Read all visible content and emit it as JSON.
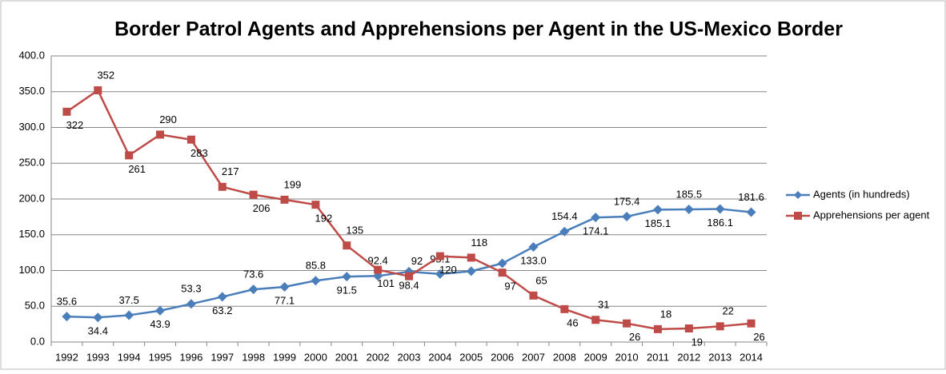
{
  "chart_data": {
    "type": "line",
    "title": "Border Patrol Agents and Apprehensions per Agent in the US-Mexico Border",
    "categories": [
      "1992",
      "1993",
      "1994",
      "1995",
      "1996",
      "1997",
      "1998",
      "1999",
      "2000",
      "2001",
      "2002",
      "2003",
      "2004",
      "2005",
      "2006",
      "2007",
      "2008",
      "2009",
      "2010",
      "2011",
      "2012",
      "2013",
      "2014"
    ],
    "series": [
      {
        "name": "Agents (in hundreds)",
        "color": "#4a7ebb",
        "values": [
          35.6,
          34.4,
          37.5,
          43.9,
          53.3,
          63.2,
          73.6,
          77.1,
          85.8,
          91.5,
          92.4,
          98.4,
          95.1,
          99,
          110,
          133.0,
          154.4,
          174.1,
          175.4,
          185.1,
          185.5,
          186.1,
          181.6
        ],
        "value_labels": [
          "35.6",
          "34.4",
          "37.5",
          "43.9",
          "53.3",
          "63.2",
          "73.6",
          "77.1",
          "85.8",
          "91.5",
          "92.4",
          "98.4",
          "95.1",
          null,
          null,
          "133.0",
          "154.4",
          "174.1",
          "175.4",
          "185.1",
          "185.5",
          "186.1",
          "181.6"
        ]
      },
      {
        "name": "Apprehensions per agent",
        "color": "#be4b48",
        "values": [
          322,
          352,
          261,
          290,
          283,
          217,
          206,
          199,
          192,
          135,
          101,
          92,
          120,
          118,
          97,
          65,
          46,
          31,
          26,
          18,
          19,
          22,
          26
        ]
      }
    ],
    "ylim": [
      0,
      400
    ],
    "yticks": [
      {
        "value": 0,
        "label": "0.0"
      },
      {
        "value": 50,
        "label": "50.0"
      },
      {
        "value": 100,
        "label": "100.0"
      },
      {
        "value": 150,
        "label": "150.0"
      },
      {
        "value": 200,
        "label": "200.0"
      },
      {
        "value": 250,
        "label": "250.0"
      },
      {
        "value": 300,
        "label": "300.0"
      },
      {
        "value": 350,
        "label": "350.0"
      },
      {
        "value": 400,
        "label": "400.0"
      }
    ],
    "grid": true,
    "legend": "right"
  }
}
